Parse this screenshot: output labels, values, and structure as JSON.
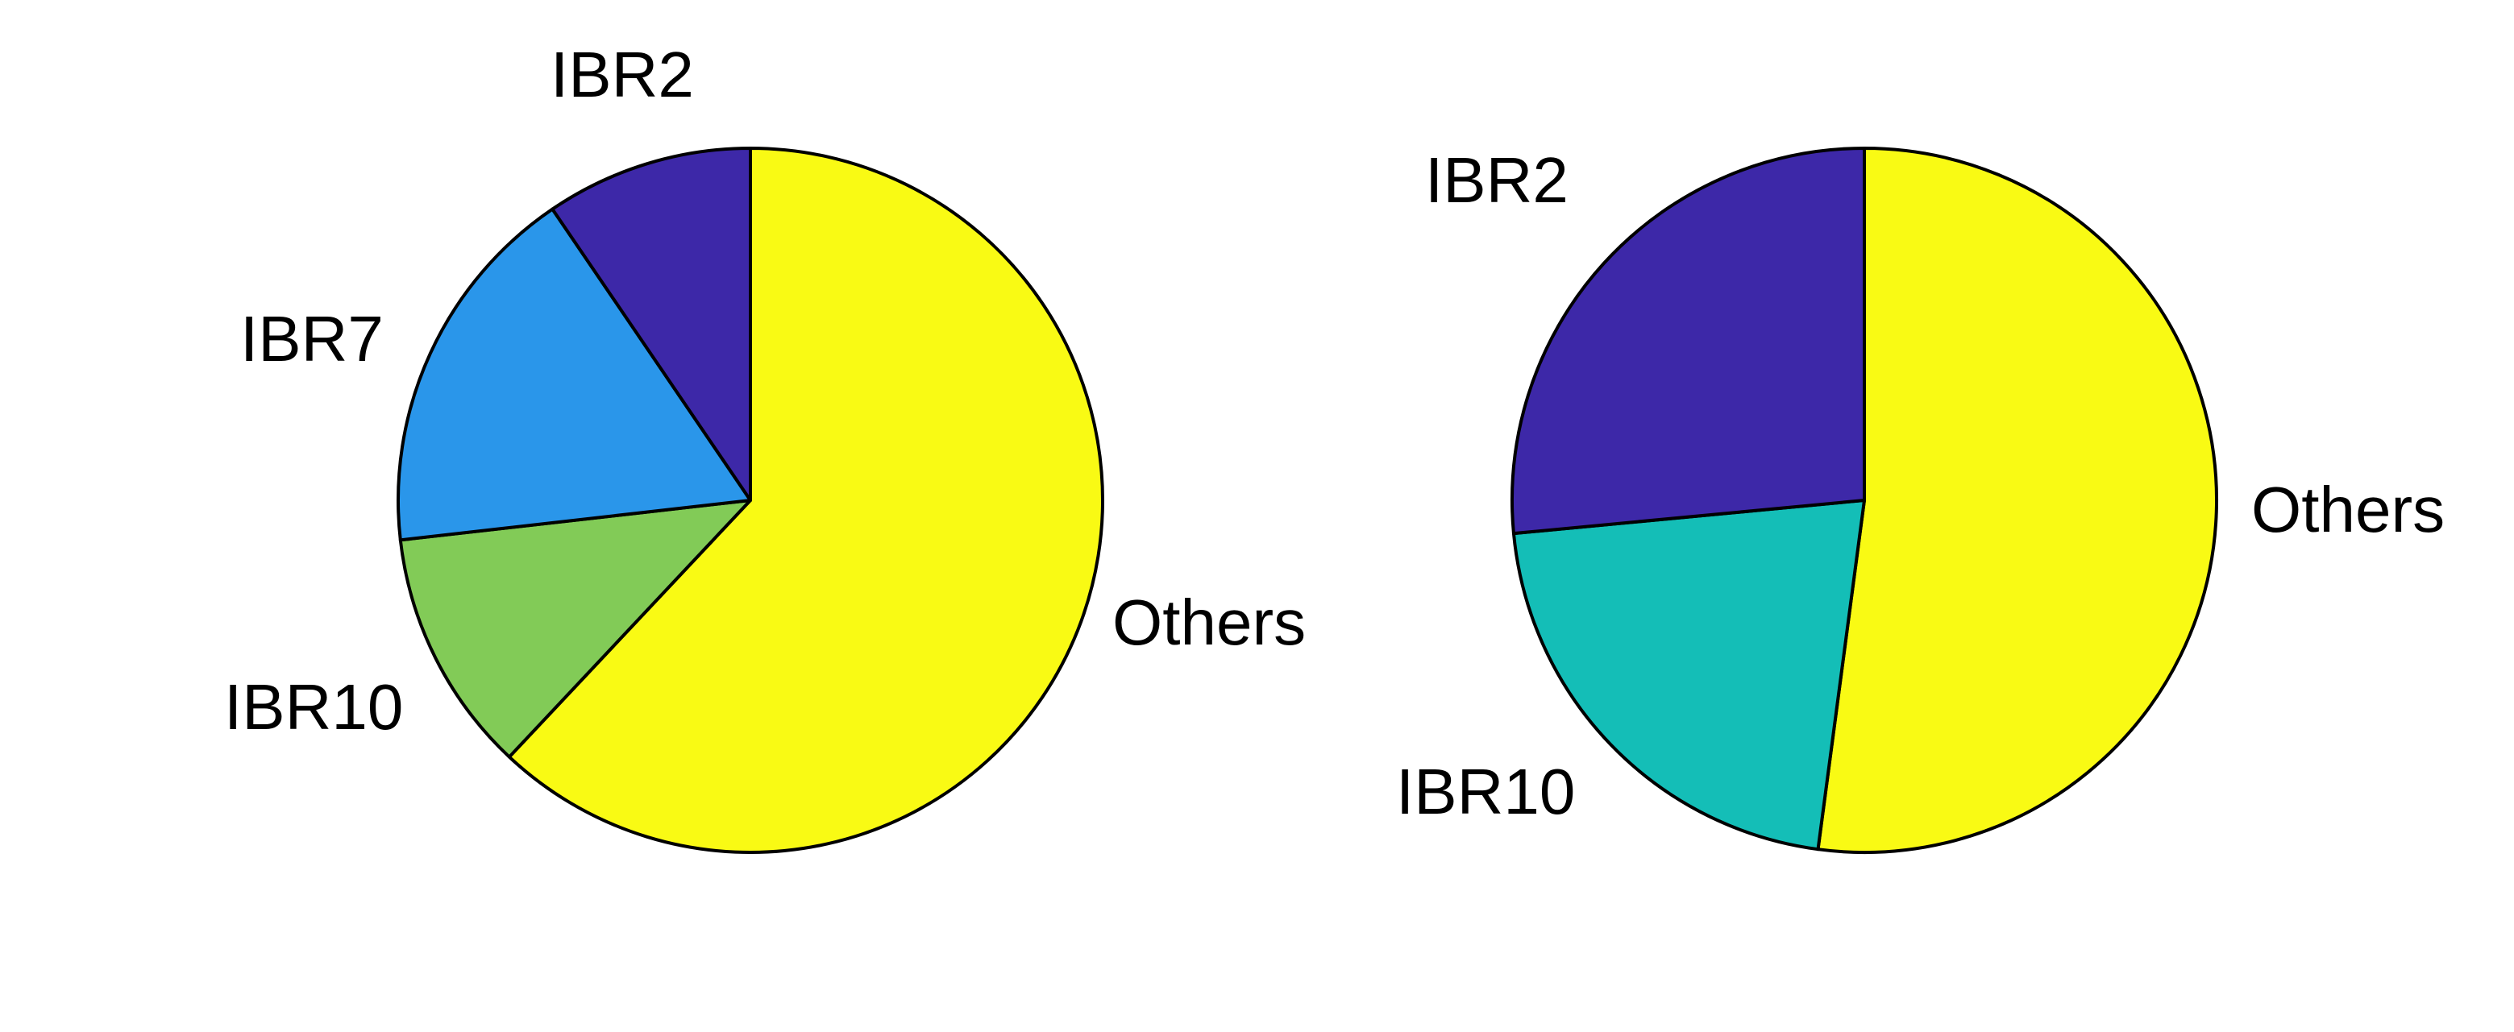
{
  "chart_data": [
    {
      "type": "pie",
      "slices": [
        {
          "label": "Others",
          "value": 62.0,
          "color": "#F9FA14"
        },
        {
          "label": "IBR10",
          "value": 11.2,
          "color": "#82CB57"
        },
        {
          "label": "IBR7",
          "value": 17.3,
          "color": "#2A96EA"
        },
        {
          "label": "IBR2",
          "value": 9.5,
          "color": "#3D28A8"
        }
      ]
    },
    {
      "type": "pie",
      "slices": [
        {
          "label": "Others",
          "value": 52.1,
          "color": "#F9FA14"
        },
        {
          "label": "IBR10",
          "value": 21.4,
          "color": "#14BEB7"
        },
        {
          "label": "IBR2",
          "value": 26.5,
          "color": "#3D28A8"
        }
      ]
    }
  ]
}
